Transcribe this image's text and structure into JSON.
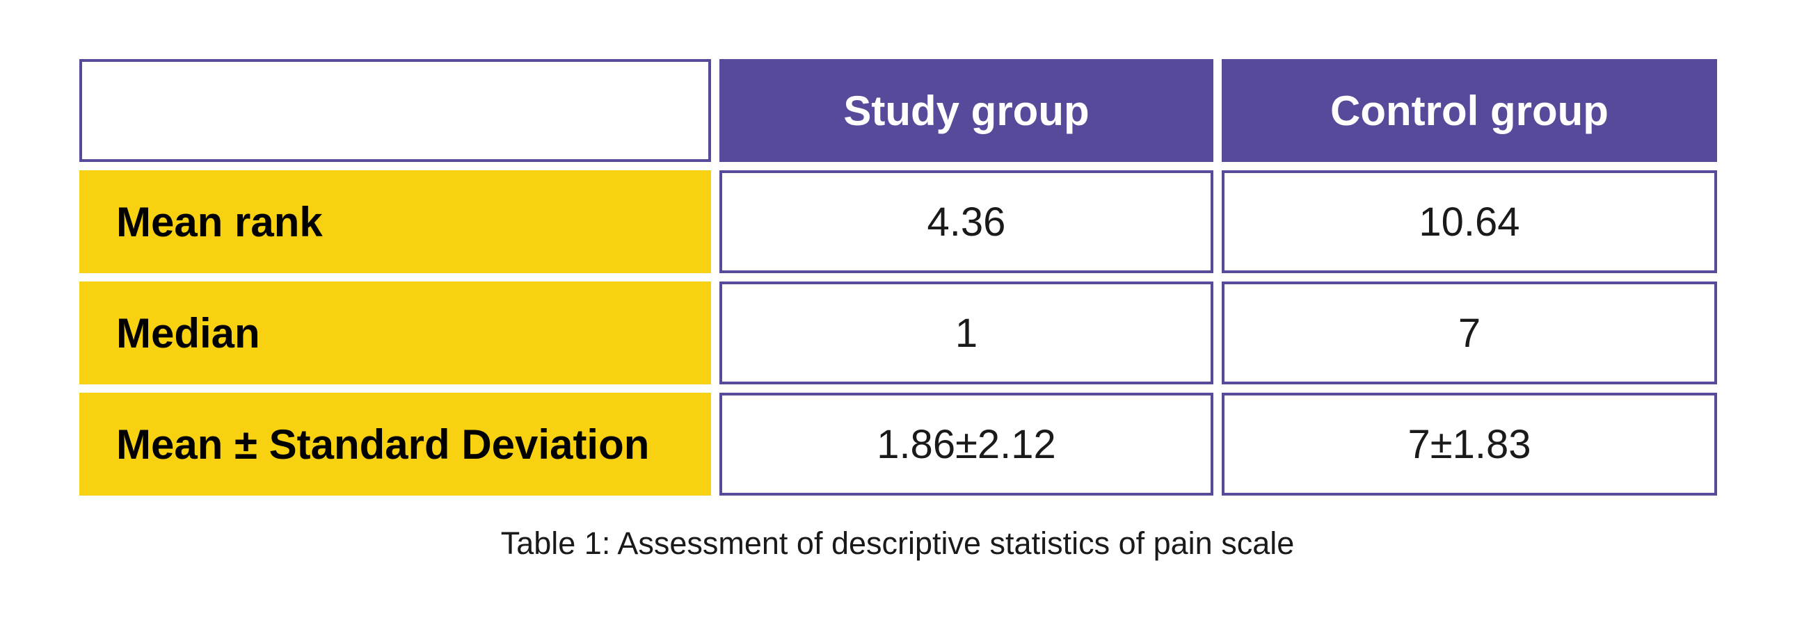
{
  "colors": {
    "header_background": "#574a9b",
    "border": "#574a9b",
    "row_label_background": "#f8d210"
  },
  "table": {
    "columns": [
      "",
      "Study group",
      "Control group"
    ],
    "rows": [
      {
        "label": "Mean rank",
        "values": [
          "4.36",
          "10.64"
        ]
      },
      {
        "label": "Median",
        "values": [
          "1",
          "7"
        ]
      },
      {
        "label": "Mean ± Standard Deviation",
        "values": [
          "1.86±2.12",
          "7±1.83"
        ]
      }
    ]
  },
  "caption": "Table 1: Assessment of descriptive statistics of pain scale"
}
